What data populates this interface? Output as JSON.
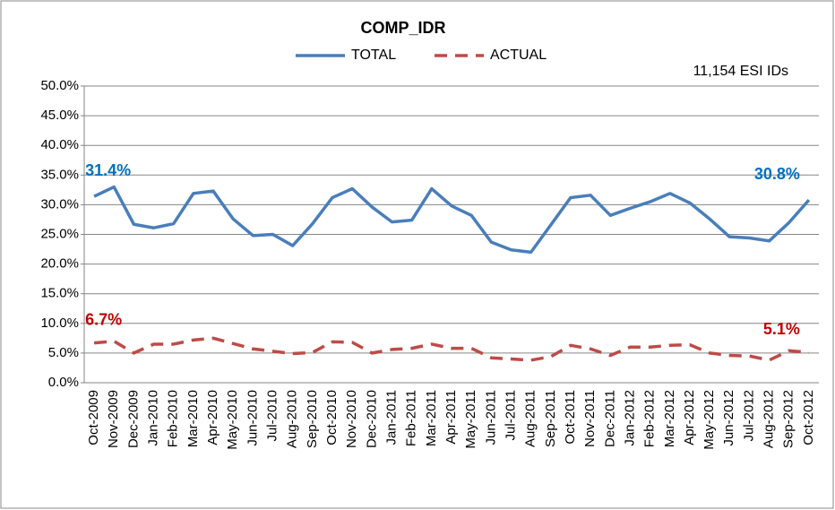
{
  "chart_data": {
    "type": "line",
    "title": "COMP_IDR",
    "annotation": "11,154 ESI IDs",
    "categories": [
      "Oct-2009",
      "Nov-2009",
      "Dec-2009",
      "Jan-2010",
      "Feb-2010",
      "Mar-2010",
      "Apr-2010",
      "May-2010",
      "Jun-2010",
      "Jul-2010",
      "Aug-2010",
      "Sep-2010",
      "Oct-2010",
      "Nov-2010",
      "Dec-2010",
      "Jan-2011",
      "Feb-2011",
      "Mar-2011",
      "Apr-2011",
      "May-2011",
      "Jun-2011",
      "Jul-2011",
      "Aug-2011",
      "Sep-2011",
      "Oct-2011",
      "Nov-2011",
      "Dec-2011",
      "Jan-2012",
      "Feb-2012",
      "Mar-2012",
      "Apr-2012",
      "May-2012",
      "Jun-2012",
      "Jul-2012",
      "Aug-2012",
      "Sep-2012",
      "Oct-2012"
    ],
    "series": [
      {
        "name": "TOTAL",
        "color": "#4a7ebb",
        "dash": false,
        "label_color": "#0070c0",
        "values": [
          31.4,
          33.0,
          26.7,
          26.1,
          26.8,
          31.9,
          32.3,
          27.6,
          24.8,
          25.0,
          23.1,
          26.8,
          31.2,
          32.7,
          29.6,
          27.1,
          27.4,
          32.7,
          29.8,
          28.2,
          23.7,
          22.4,
          22.0,
          26.6,
          31.2,
          31.6,
          28.2,
          29.4,
          30.5,
          31.9,
          30.3,
          27.6,
          24.6,
          24.4,
          23.9,
          27.0,
          30.8
        ],
        "value_labels": [
          "31.4%",
          null,
          null,
          null,
          null,
          null,
          null,
          null,
          null,
          null,
          null,
          null,
          null,
          null,
          null,
          null,
          null,
          null,
          null,
          null,
          null,
          null,
          null,
          null,
          null,
          null,
          null,
          null,
          null,
          null,
          null,
          null,
          null,
          null,
          null,
          null,
          "30.8%"
        ]
      },
      {
        "name": "ACTUAL",
        "color": "#be4b48",
        "dash": true,
        "label_color": "#c00000",
        "values": [
          6.7,
          7.0,
          5.0,
          6.5,
          6.5,
          7.2,
          7.5,
          6.6,
          5.7,
          5.3,
          4.9,
          5.1,
          6.9,
          6.8,
          5.0,
          5.6,
          5.8,
          6.5,
          5.8,
          5.8,
          4.2,
          4.0,
          3.8,
          4.4,
          6.3,
          5.7,
          4.6,
          6.0,
          6.0,
          6.3,
          6.4,
          5.0,
          4.6,
          4.5,
          3.8,
          5.4,
          5.1
        ],
        "value_labels": [
          "6.7%",
          null,
          null,
          null,
          null,
          null,
          null,
          null,
          null,
          null,
          null,
          null,
          null,
          null,
          null,
          null,
          null,
          null,
          null,
          null,
          null,
          null,
          null,
          null,
          null,
          null,
          null,
          null,
          null,
          null,
          null,
          null,
          null,
          null,
          null,
          null,
          "5.1%"
        ]
      }
    ],
    "ylim": [
      0,
      50
    ],
    "yticks": [
      {
        "value": 0,
        "label": "0.0%"
      },
      {
        "value": 5,
        "label": "5.0%"
      },
      {
        "value": 10,
        "label": "10.0%"
      },
      {
        "value": 15,
        "label": "15.0%"
      },
      {
        "value": 20,
        "label": "20.0%"
      },
      {
        "value": 25,
        "label": "25.0%"
      },
      {
        "value": 30,
        "label": "30.0%"
      },
      {
        "value": 35,
        "label": "35.0%"
      },
      {
        "value": 40,
        "label": "40.0%"
      },
      {
        "value": 45,
        "label": "45.0%"
      },
      {
        "value": 50,
        "label": "50.0%"
      }
    ],
    "grid": true,
    "legend": "top"
  }
}
